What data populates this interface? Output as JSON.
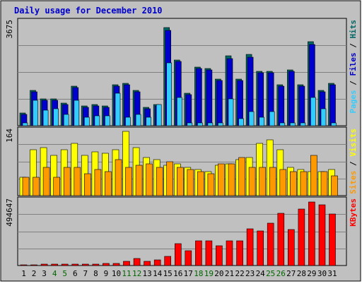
{
  "title": "Daily usage for December 2010",
  "chart_data": [
    {
      "type": "bar",
      "categories": [
        "1",
        "2",
        "3",
        "4",
        "5",
        "6",
        "7",
        "8",
        "9",
        "10",
        "11",
        "12",
        "13",
        "14",
        "15",
        "16",
        "17",
        "18",
        "19",
        "20",
        "21",
        "22",
        "23",
        "24",
        "25",
        "26",
        "27",
        "28",
        "29",
        "30",
        "31"
      ],
      "ymax_label": "3675",
      "ylim": [
        0,
        3675
      ],
      "series": [
        {
          "name": "Hits",
          "color": "#006666",
          "values": [
            450,
            1250,
            950,
            950,
            800,
            1400,
            700,
            750,
            700,
            1450,
            1500,
            1250,
            650,
            750,
            3450,
            2300,
            1150,
            2050,
            2000,
            1650,
            2450,
            1650,
            2500,
            1900,
            1900,
            1450,
            1950,
            1450,
            2950,
            1250,
            1500
          ]
        },
        {
          "name": "Files",
          "color": "#0000cc",
          "values": [
            400,
            1200,
            900,
            900,
            750,
            1350,
            650,
            700,
            650,
            1400,
            1450,
            1200,
            600,
            700,
            3350,
            2250,
            1100,
            2000,
            1950,
            1600,
            2350,
            1600,
            2400,
            1850,
            1850,
            1400,
            1900,
            1400,
            2850,
            1200,
            1450
          ]
        },
        {
          "name": "Pages",
          "color": "#33ccff",
          "values": [
            100,
            900,
            550,
            600,
            400,
            900,
            300,
            350,
            350,
            1150,
            300,
            400,
            300,
            750,
            2200,
            1000,
            100,
            100,
            100,
            100,
            950,
            250,
            500,
            300,
            500,
            100,
            100,
            100,
            1000,
            600,
            100
          ]
        }
      ],
      "legend_words": [
        "Pages",
        "Files",
        "Hits"
      ],
      "legend_separator": " / "
    },
    {
      "type": "bar",
      "categories": [
        "1",
        "2",
        "3",
        "4",
        "5",
        "6",
        "7",
        "8",
        "9",
        "10",
        "11",
        "12",
        "13",
        "14",
        "15",
        "16",
        "17",
        "18",
        "19",
        "20",
        "21",
        "22",
        "23",
        "24",
        "25",
        "26",
        "27",
        "28",
        "29",
        "30",
        "31"
      ],
      "ymax_label": "164",
      "ylim": [
        0,
        164
      ],
      "series": [
        {
          "name": "Visits",
          "color": "#ffff00",
          "values": [
            45,
            115,
            120,
            100,
            115,
            130,
            100,
            110,
            105,
            115,
            160,
            120,
            95,
            90,
            75,
            80,
            70,
            65,
            60,
            75,
            80,
            90,
            95,
            130,
            140,
            115,
            70,
            65,
            60,
            60,
            65
          ]
        },
        {
          "name": "Sites",
          "color": "#ff9900",
          "values": [
            45,
            45,
            70,
            45,
            70,
            70,
            55,
            65,
            60,
            90,
            70,
            75,
            80,
            70,
            85,
            70,
            65,
            60,
            55,
            80,
            80,
            95,
            70,
            70,
            70,
            65,
            60,
            60,
            100,
            60,
            50
          ]
        }
      ],
      "legend_words": [
        "Sites",
        "Visits"
      ],
      "legend_separator": " / "
    },
    {
      "type": "bar",
      "categories": [
        "1",
        "2",
        "3",
        "4",
        "5",
        "6",
        "7",
        "8",
        "9",
        "10",
        "11",
        "12",
        "13",
        "14",
        "15",
        "16",
        "17",
        "18",
        "19",
        "20",
        "21",
        "22",
        "23",
        "24",
        "25",
        "26",
        "27",
        "28",
        "29",
        "30",
        "31"
      ],
      "ymax_label": "494647",
      "ylim": [
        0,
        494647
      ],
      "series": [
        {
          "name": "KBytes",
          "color": "#ff0000",
          "values": [
            5000,
            5000,
            10000,
            10000,
            12000,
            12000,
            10000,
            10000,
            15000,
            15000,
            30000,
            55000,
            30000,
            40000,
            70000,
            165000,
            110000,
            185000,
            185000,
            150000,
            185000,
            185000,
            275000,
            260000,
            320000,
            395000,
            270000,
            425000,
            480000,
            455000,
            390000
          ]
        }
      ],
      "legend_words": [
        "KBytes"
      ],
      "legend_separator": ""
    }
  ],
  "weekend_days": [
    4,
    5,
    11,
    12,
    18,
    19,
    25,
    26
  ],
  "colors": {
    "frame_bg": "#c0c0c0",
    "panel_bg": "#c0c0c0",
    "title": "#0000cc",
    "weekday_label": "#000000",
    "weekend_label": "#006600",
    "legend_separator": "#000000"
  }
}
